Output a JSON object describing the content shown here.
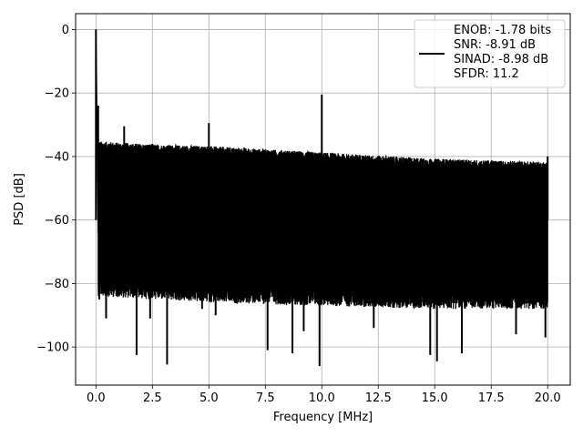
{
  "chart_data": {
    "type": "line",
    "xlabel": "Frequency [MHz]",
    "ylabel": "PSD [dB]",
    "xlim": [
      -0.9,
      21.0
    ],
    "ylim": [
      -112,
      5
    ],
    "xticks": [
      0.0,
      2.5,
      5.0,
      7.5,
      10.0,
      12.5,
      15.0,
      17.5,
      20.0
    ],
    "xtick_labels": [
      "0.0",
      "2.5",
      "5.0",
      "7.5",
      "10.0",
      "12.5",
      "15.0",
      "17.5",
      "20.0"
    ],
    "yticks": [
      0,
      -20,
      -40,
      -60,
      -80,
      -100
    ],
    "ytick_labels": [
      "0",
      "−20",
      "−40",
      "−60",
      "−80",
      "−100"
    ],
    "grid": true,
    "legend_position": "upper-right",
    "legend_lines": [
      "ENOB: -1.78 bits",
      "SNR: -8.91 dB",
      "SINAD: -8.98 dB",
      "SFDR: 11.2"
    ],
    "series": [
      {
        "color": "#000000",
        "noise_band_upper": [
          [
            0.1,
            -36
          ],
          [
            2.5,
            -37
          ],
          [
            5.0,
            -37.5
          ],
          [
            7.5,
            -38.5
          ],
          [
            10.0,
            -39.5
          ],
          [
            12.5,
            -40.5
          ],
          [
            15.0,
            -41.5
          ],
          [
            17.5,
            -42
          ],
          [
            20.0,
            -42.5
          ]
        ],
        "noise_band_lower": [
          [
            0.1,
            -78
          ],
          [
            5.0,
            -80
          ],
          [
            10.0,
            -81
          ],
          [
            15.0,
            -82
          ],
          [
            20.0,
            -82
          ]
        ],
        "peaks": [
          {
            "x": 0.0,
            "y": 0
          },
          {
            "x": 0.1,
            "y": -24
          },
          {
            "x": 1.25,
            "y": -30.5
          },
          {
            "x": 2.5,
            "y": -36
          },
          {
            "x": 5.0,
            "y": -29.5
          },
          {
            "x": 10.0,
            "y": -20.5
          },
          {
            "x": 20.0,
            "y": -40
          }
        ],
        "dips": [
          {
            "x": 0.15,
            "y": -85
          },
          {
            "x": 0.45,
            "y": -91
          },
          {
            "x": 1.8,
            "y": -102.5
          },
          {
            "x": 2.4,
            "y": -91
          },
          {
            "x": 3.15,
            "y": -105.5
          },
          {
            "x": 4.7,
            "y": -88
          },
          {
            "x": 5.3,
            "y": -90
          },
          {
            "x": 7.6,
            "y": -101
          },
          {
            "x": 8.7,
            "y": -102
          },
          {
            "x": 9.2,
            "y": -95
          },
          {
            "x": 9.9,
            "y": -106
          },
          {
            "x": 12.3,
            "y": -94
          },
          {
            "x": 14.8,
            "y": -102.5
          },
          {
            "x": 15.1,
            "y": -104.5
          },
          {
            "x": 16.2,
            "y": -102
          },
          {
            "x": 18.6,
            "y": -96
          },
          {
            "x": 19.9,
            "y": -97
          }
        ]
      }
    ]
  }
}
